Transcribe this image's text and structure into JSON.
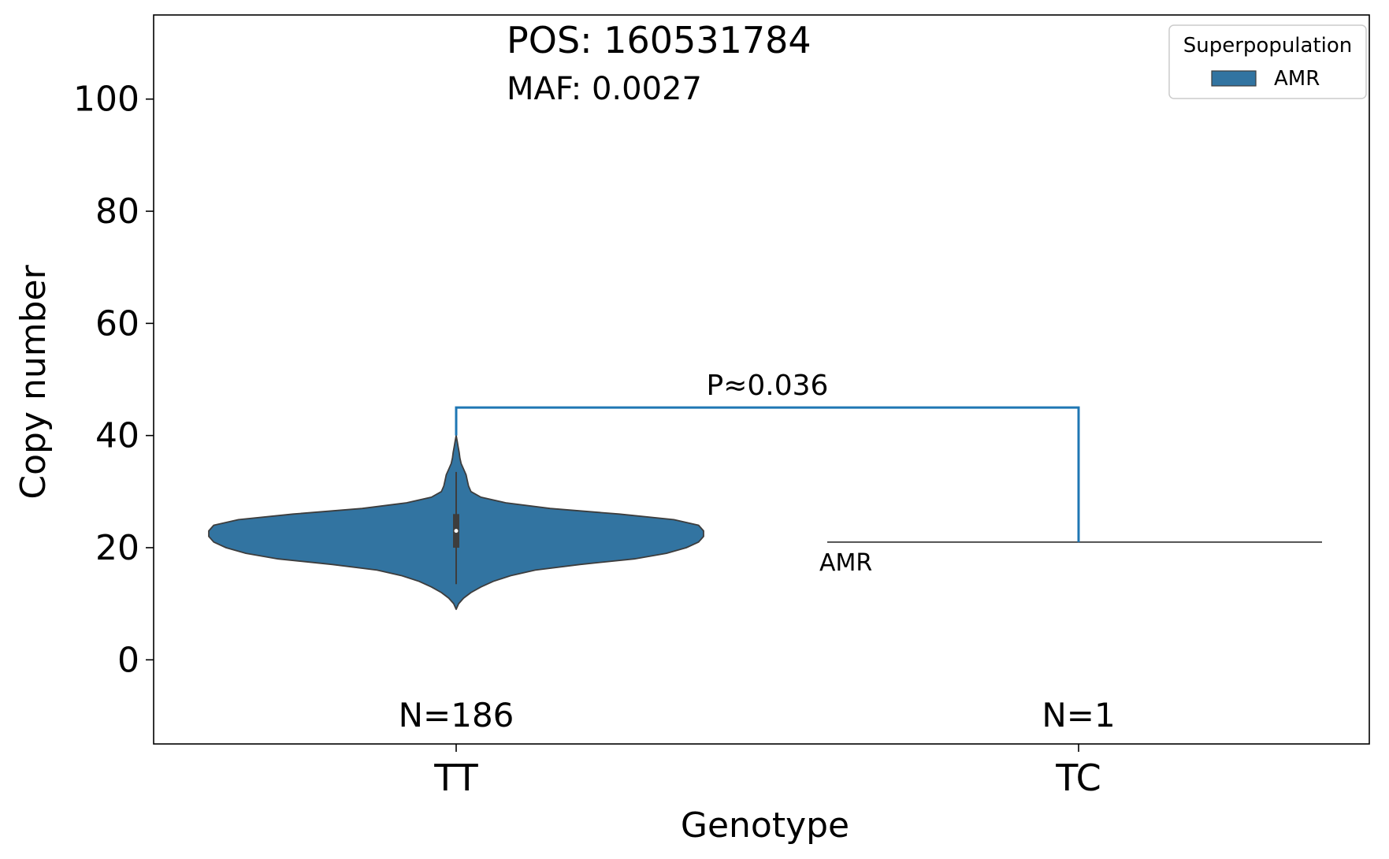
{
  "chart_data": {
    "type": "violin",
    "title_lines": [
      "POS: 160531784",
      "MAF: 0.0027"
    ],
    "xlabel": "Genotype",
    "ylabel": "Copy number",
    "categories": [
      "TT",
      "TC"
    ],
    "ylim": [
      -15,
      115
    ],
    "yticks": [
      0,
      20,
      40,
      60,
      80,
      100
    ],
    "grid": false,
    "legend": {
      "title": "Superpopulation",
      "position": "top-right",
      "entries": [
        {
          "label": "AMR",
          "color": "#3274a1"
        }
      ]
    },
    "series": [
      {
        "name": "AMR",
        "color": "#3274a1",
        "groups": [
          {
            "category": "TT",
            "n": 186,
            "label": "N=186",
            "min": 9,
            "max": 40,
            "q1": 20,
            "median": 23,
            "q3": 26,
            "whisker_low": 13.5,
            "whisker_high": 33.5,
            "density_profile": [
              [
                9,
                0.0
              ],
              [
                10,
                0.01
              ],
              [
                11,
                0.03
              ],
              [
                12,
                0.06
              ],
              [
                13,
                0.1
              ],
              [
                14,
                0.15
              ],
              [
                15,
                0.22
              ],
              [
                16,
                0.32
              ],
              [
                17,
                0.5
              ],
              [
                18,
                0.72
              ],
              [
                19,
                0.85
              ],
              [
                20,
                0.93
              ],
              [
                21,
                0.98
              ],
              [
                22,
                1.0
              ],
              [
                23,
                1.0
              ],
              [
                24,
                0.98
              ],
              [
                25,
                0.88
              ],
              [
                26,
                0.66
              ],
              [
                27,
                0.38
              ],
              [
                28,
                0.2
              ],
              [
                29,
                0.1
              ],
              [
                30,
                0.06
              ],
              [
                31,
                0.05
              ],
              [
                32,
                0.045
              ],
              [
                33,
                0.04
              ],
              [
                34,
                0.03
              ],
              [
                35,
                0.02
              ],
              [
                36,
                0.015
              ],
              [
                37,
                0.012
              ],
              [
                38,
                0.008
              ],
              [
                39,
                0.004
              ],
              [
                40,
                0.0
              ]
            ]
          },
          {
            "category": "TC",
            "n": 1,
            "label": "N=1",
            "value": 21,
            "group_label": "AMR"
          }
        ]
      }
    ],
    "annotations": [
      {
        "type": "significance-bracket",
        "from": "TT",
        "to": "TC",
        "y": 45,
        "text": "P≈0.036",
        "color": "#1f77b4"
      }
    ]
  }
}
